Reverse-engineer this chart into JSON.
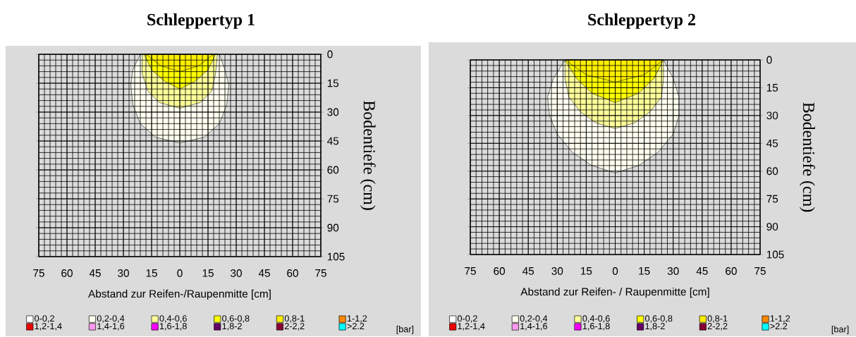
{
  "chart_data": [
    {
      "type": "area",
      "title": "Schleppertyp 1",
      "xlabel": "Abstand zur Reifen-/Raupenmitte [cm]",
      "ylabel": "Bodentiefe (cm)",
      "legend_title": "[bar]",
      "legend": "bottom",
      "grid": true,
      "xlim": [
        -75,
        75
      ],
      "ylim": [
        105,
        0
      ],
      "xticks": [
        {
          "value": -75,
          "label": "75"
        },
        {
          "value": -60,
          "label": "60"
        },
        {
          "value": -45,
          "label": "45"
        },
        {
          "value": -30,
          "label": "30"
        },
        {
          "value": -15,
          "label": "15"
        },
        0,
        15,
        30,
        45,
        60,
        75
      ],
      "yticks": [
        0,
        15,
        30,
        45,
        60,
        75,
        90,
        105
      ],
      "series": [
        {
          "name": "0-0,2",
          "color": "#ffffff"
        },
        {
          "name": "0,2-0,4",
          "color": "#fffff0",
          "x": [
            -21,
            -25,
            -26,
            -25,
            -21,
            -13,
            0,
            13,
            21,
            25,
            26,
            24,
            21
          ],
          "values": [
            0,
            8,
            16,
            26,
            36,
            43,
            46,
            43,
            36,
            26,
            16,
            8,
            0
          ]
        },
        {
          "name": "0,4-0,6",
          "color": "#ffff99",
          "x": [
            -20,
            -20,
            -17,
            -11,
            0,
            11,
            17,
            19,
            20
          ],
          "values": [
            0,
            10,
            19,
            25,
            28,
            25,
            19,
            10,
            0
          ]
        },
        {
          "name": "0,6-0,8",
          "color": "#ffff00",
          "x": [
            -19,
            -15,
            -8,
            0,
            8,
            15,
            19
          ],
          "values": [
            0,
            8,
            14,
            18,
            14,
            8,
            0
          ]
        },
        {
          "name": "0,8-1",
          "color": "#ffee00",
          "x": [
            -18,
            -10,
            0,
            10,
            18
          ],
          "values": [
            0,
            6,
            9,
            6,
            0
          ]
        },
        {
          "name": "1-1,2",
          "color": "#ff8800"
        },
        {
          "name": "1,2-1,4",
          "color": "#ee0000"
        },
        {
          "name": "1,4-1,6",
          "color": "#ff99ee"
        },
        {
          "name": "1,6-1,8",
          "color": "#ff00ff"
        },
        {
          "name": "1,8-2",
          "color": "#660066"
        },
        {
          "name": "2-2,2",
          "color": "#880033"
        },
        {
          "name": ">2.2",
          "color": "#00ffff"
        }
      ]
    },
    {
      "type": "area",
      "title": "Schleppertyp 2",
      "xlabel": "Abstand zur Reifen- / Raupenmitte [cm]",
      "ylabel": "Bodentiefe (cm)",
      "legend_title": "[bar]",
      "legend": "bottom",
      "grid": true,
      "xlim": [
        -75,
        75
      ],
      "ylim": [
        105,
        0
      ],
      "xticks": [
        {
          "value": -75,
          "label": "75"
        },
        {
          "value": -60,
          "label": "60"
        },
        {
          "value": -45,
          "label": "45"
        },
        {
          "value": -30,
          "label": "30"
        },
        {
          "value": -15,
          "label": "15"
        },
        0,
        15,
        30,
        45,
        60,
        75
      ],
      "yticks": [
        0,
        15,
        30,
        45,
        60,
        75,
        90,
        105
      ],
      "series": [
        {
          "name": "0-0,2",
          "color": "#ffffff"
        },
        {
          "name": "0,2-0,4",
          "color": "#fffff0",
          "x": [
            -26,
            -32,
            -35,
            -34,
            -30,
            -22,
            -12,
            0,
            12,
            22,
            30,
            33,
            33,
            30,
            25
          ],
          "values": [
            0,
            10,
            20,
            30,
            40,
            50,
            57,
            61,
            57,
            50,
            40,
            30,
            20,
            10,
            0
          ]
        },
        {
          "name": "0,4-0,6",
          "color": "#ffff99",
          "x": [
            -26,
            -26,
            -24,
            -18,
            -10,
            0,
            10,
            18,
            24,
            25,
            25
          ],
          "values": [
            0,
            10,
            20,
            28,
            34,
            37,
            34,
            28,
            20,
            10,
            0
          ]
        },
        {
          "name": "0,6-0,8",
          "color": "#ffff00",
          "x": [
            -26,
            -20,
            -12,
            0,
            12,
            20,
            25
          ],
          "values": [
            0,
            10,
            18,
            23,
            18,
            10,
            0
          ]
        },
        {
          "name": "0,8-1",
          "color": "#ffee00",
          "x": [
            -26,
            -15,
            0,
            15,
            25
          ],
          "values": [
            0,
            8,
            12,
            8,
            0
          ]
        },
        {
          "name": "1-1,2",
          "color": "#ff8800"
        },
        {
          "name": "1,2-1,4",
          "color": "#ee0000"
        },
        {
          "name": "1,4-1,6",
          "color": "#ff99ee"
        },
        {
          "name": "1,6-1,8",
          "color": "#ff00ff"
        },
        {
          "name": "1,8-2",
          "color": "#660066"
        },
        {
          "name": "2-2,2",
          "color": "#880033"
        },
        {
          "name": ">2.2",
          "color": "#00ffff"
        }
      ]
    }
  ]
}
